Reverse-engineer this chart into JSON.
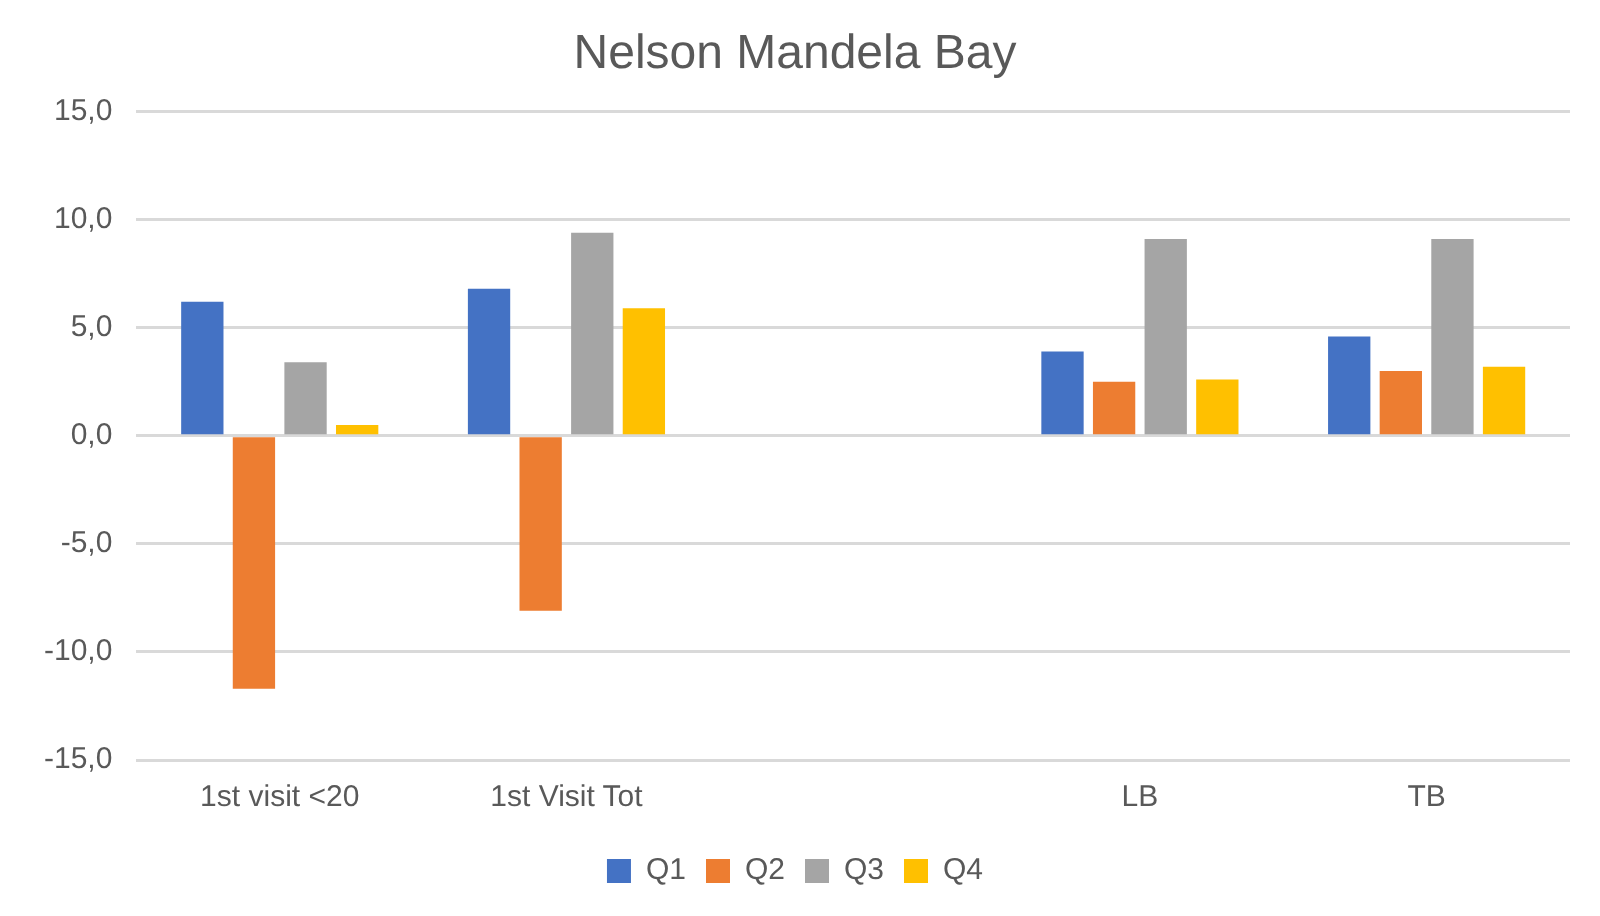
{
  "chart_data": {
    "type": "bar",
    "title": "Nelson Mandela Bay",
    "categories": [
      "1st visit <20",
      "1st Visit Tot",
      null,
      "LB",
      "TB"
    ],
    "series": [
      {
        "name": "Q1",
        "color": "#4472c4",
        "values": [
          6.2,
          6.8,
          null,
          3.9,
          4.6
        ]
      },
      {
        "name": "Q2",
        "color": "#ed7d31",
        "values": [
          -11.7,
          -8.1,
          null,
          2.5,
          3.0
        ]
      },
      {
        "name": "Q3",
        "color": "#a5a5a5",
        "values": [
          3.4,
          9.4,
          null,
          9.1,
          9.1
        ]
      },
      {
        "name": "Q4",
        "color": "#ffc000",
        "values": [
          0.5,
          5.9,
          null,
          2.6,
          3.2
        ]
      }
    ],
    "ylim": [
      -15,
      15
    ],
    "yticks": [
      {
        "value": -15,
        "label": "-15,0"
      },
      {
        "value": -10,
        "label": "-10,0"
      },
      {
        "value": -5,
        "label": "-5,0"
      },
      {
        "value": 0,
        "label": "0,0"
      },
      {
        "value": 5,
        "label": "5,0"
      },
      {
        "value": 10,
        "label": "10,0"
      },
      {
        "value": 15,
        "label": "15,0"
      }
    ],
    "grid": "y",
    "legend": "bottom"
  }
}
